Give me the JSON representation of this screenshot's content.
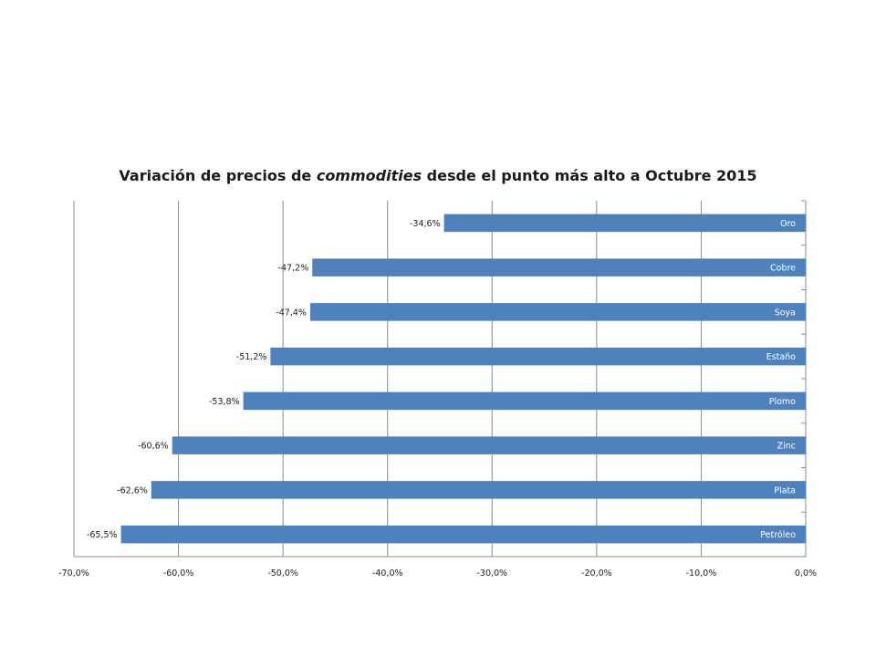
{
  "chart_data": {
    "type": "bar",
    "orientation": "horizontal",
    "title_parts": [
      "Variación de precios de ",
      "commodities",
      " desde el punto más alto a Octubre 2015"
    ],
    "categories": [
      "Oro",
      "Cobre",
      "Soya",
      "Estaño",
      "Plomo",
      "Zinc",
      "Plata",
      "Petróleo"
    ],
    "values": [
      -34.6,
      -47.2,
      -47.4,
      -51.2,
      -53.8,
      -60.6,
      -62.6,
      -65.5
    ],
    "value_labels": [
      "-34,6%",
      "-47,2%",
      "-47,4%",
      "-51,2%",
      "-53,8%",
      "-60,6%",
      "-62,6%",
      "-65,5%"
    ],
    "xlim": [
      -70,
      0
    ],
    "xticks": [
      -70,
      -60,
      -50,
      -40,
      -30,
      -20,
      -10,
      0
    ],
    "xtick_labels": [
      "-70,0%",
      "-60,0%",
      "-50,0%",
      "-40,0%",
      "-30,0%",
      "-20,0%",
      "-10,0%",
      "0,0%"
    ],
    "grid": "vertical",
    "legend": "none",
    "bar_color": "#4F81BD",
    "category_label_color": "#FFFFFF"
  }
}
